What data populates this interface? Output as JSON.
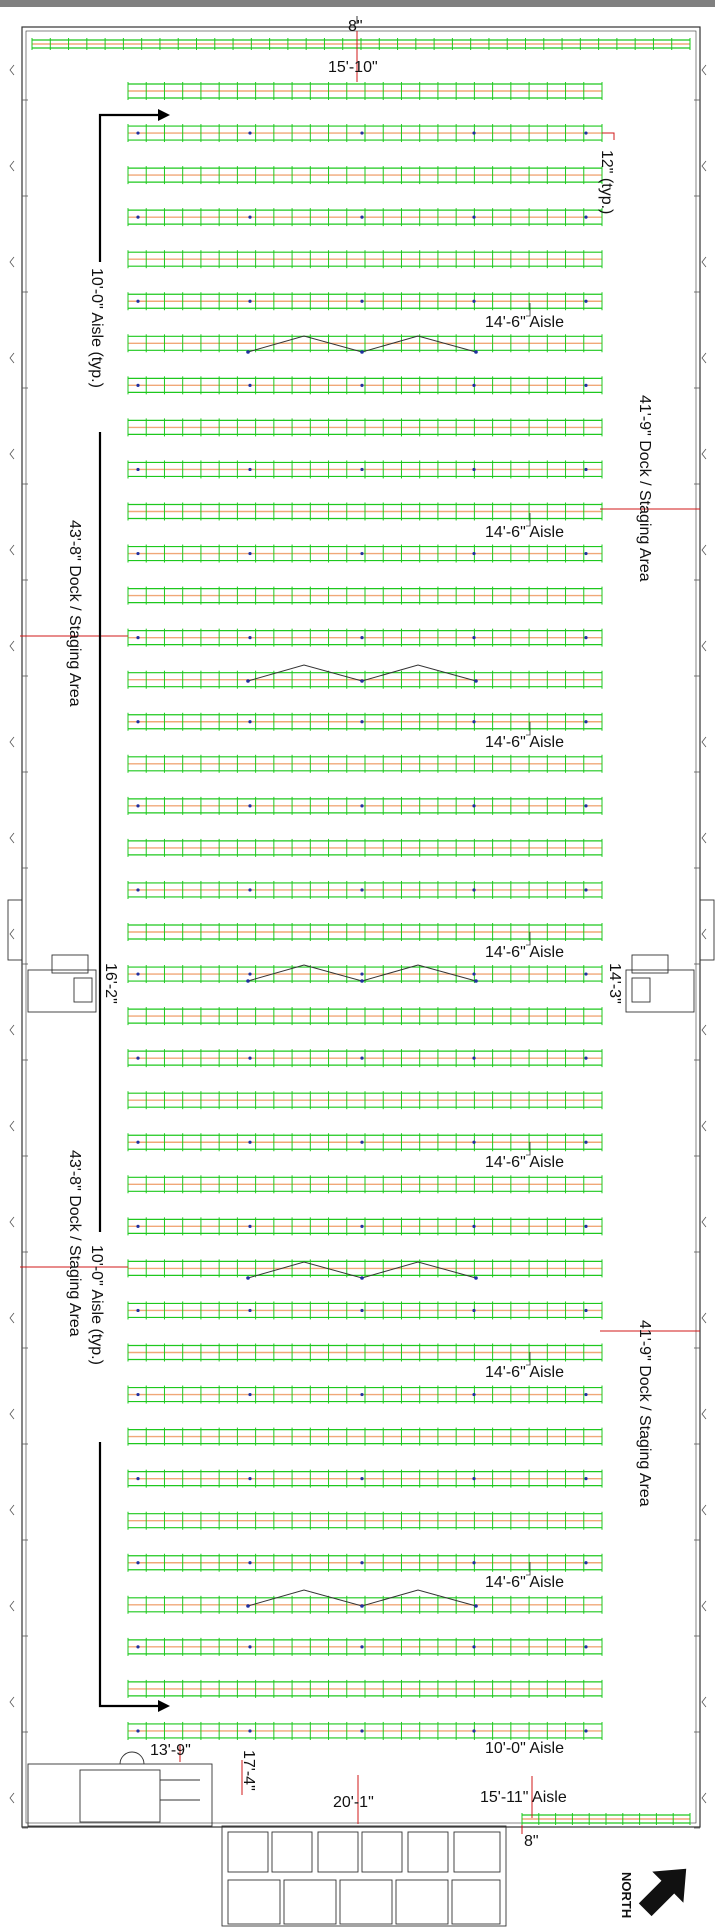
{
  "dimensions": {
    "top_clearance": "8\"",
    "end_aisle_top": "15'-10\"",
    "flue_space": "12\" (typ.)",
    "aisle_1": "14'-6\" Aisle",
    "aisle_2": "14'-6\" Aisle",
    "aisle_3": "14'-6\" Aisle",
    "aisle_4": "14'-6\" Aisle",
    "aisle_5": "14'-6\" Aisle",
    "aisle_6": "14'-6\" Aisle",
    "aisle_7": "14'-6\" Aisle",
    "left_aisle_top": "10'-0\" Aisle (typ.)",
    "left_aisle_bottom": "10'-0\" Aisle (typ.)",
    "left_dock_top": "43'-8\" Dock / Staging Area",
    "left_dock_bottom": "43'-8\" Dock / Staging Area",
    "right_dock_top": "41'-9\" Dock / Staging Area",
    "right_dock_bottom": "41'-9\" Dock / Staging Area",
    "left_column_offset": "16'-2\"",
    "right_column_offset": "14'-3\"",
    "office_width": "13'-9\"",
    "office_gap": "17'-4\"",
    "bottom_aisle": "10'-0\" Aisle",
    "bottom_end_aisle": "15'-11\" Aisle",
    "bottom_span": "20'-1\"",
    "bottom_clearance": "8\""
  },
  "north_arrow": {
    "label": "NORTH",
    "icon": "north-arrow-icon"
  },
  "colors": {
    "upright": "#1ec81e",
    "beam": "#f0a878",
    "wall": "#333333",
    "dimension_line": "#d01818",
    "flow_arrow": "#000000",
    "band": "#808080"
  }
}
